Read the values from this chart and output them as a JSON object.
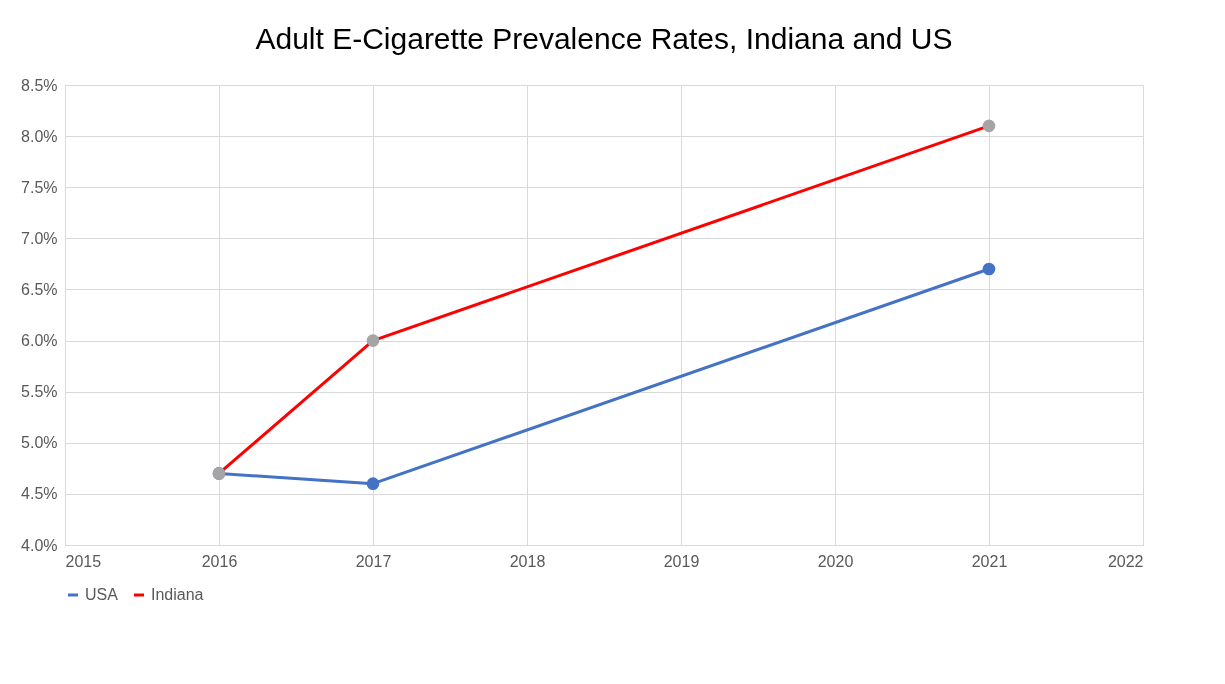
{
  "chart_data": {
    "type": "line",
    "title": "Adult E-Cigarette Prevalence Rates, Indiana and US",
    "x": [
      2016,
      2017,
      2021
    ],
    "series": [
      {
        "name": "USA",
        "color": "#4472c4",
        "values": [
          4.7,
          4.6,
          6.7
        ]
      },
      {
        "name": "Indiana",
        "color": "#ff0000",
        "colors": [
          "#a5a5a5",
          "#a5a5a5",
          "#a5a5a5"
        ],
        "values": [
          4.7,
          6.0,
          8.1
        ]
      }
    ],
    "xlim": [
      2015,
      2022
    ],
    "xticks": [
      2015,
      2016,
      2017,
      2018,
      2019,
      2020,
      2021,
      2022
    ],
    "ylim": [
      4.0,
      8.5
    ],
    "yticks": [
      {
        "value": 4.0,
        "label": "4.0%"
      },
      {
        "value": 4.5,
        "label": "4.5%"
      },
      {
        "value": 5.0,
        "label": "5.0%"
      },
      {
        "value": 5.5,
        "label": "5.5%"
      },
      {
        "value": 6.0,
        "label": "6.0%"
      },
      {
        "value": 6.5,
        "label": "6.5%"
      },
      {
        "value": 7.0,
        "label": "7.0%"
      },
      {
        "value": 7.5,
        "label": "7.5%"
      },
      {
        "value": 8.0,
        "label": "8.0%"
      },
      {
        "value": 8.5,
        "label": "8.5%"
      }
    ],
    "grid": true,
    "legend": "bottom",
    "marker": "circle",
    "line_style": "solid"
  }
}
